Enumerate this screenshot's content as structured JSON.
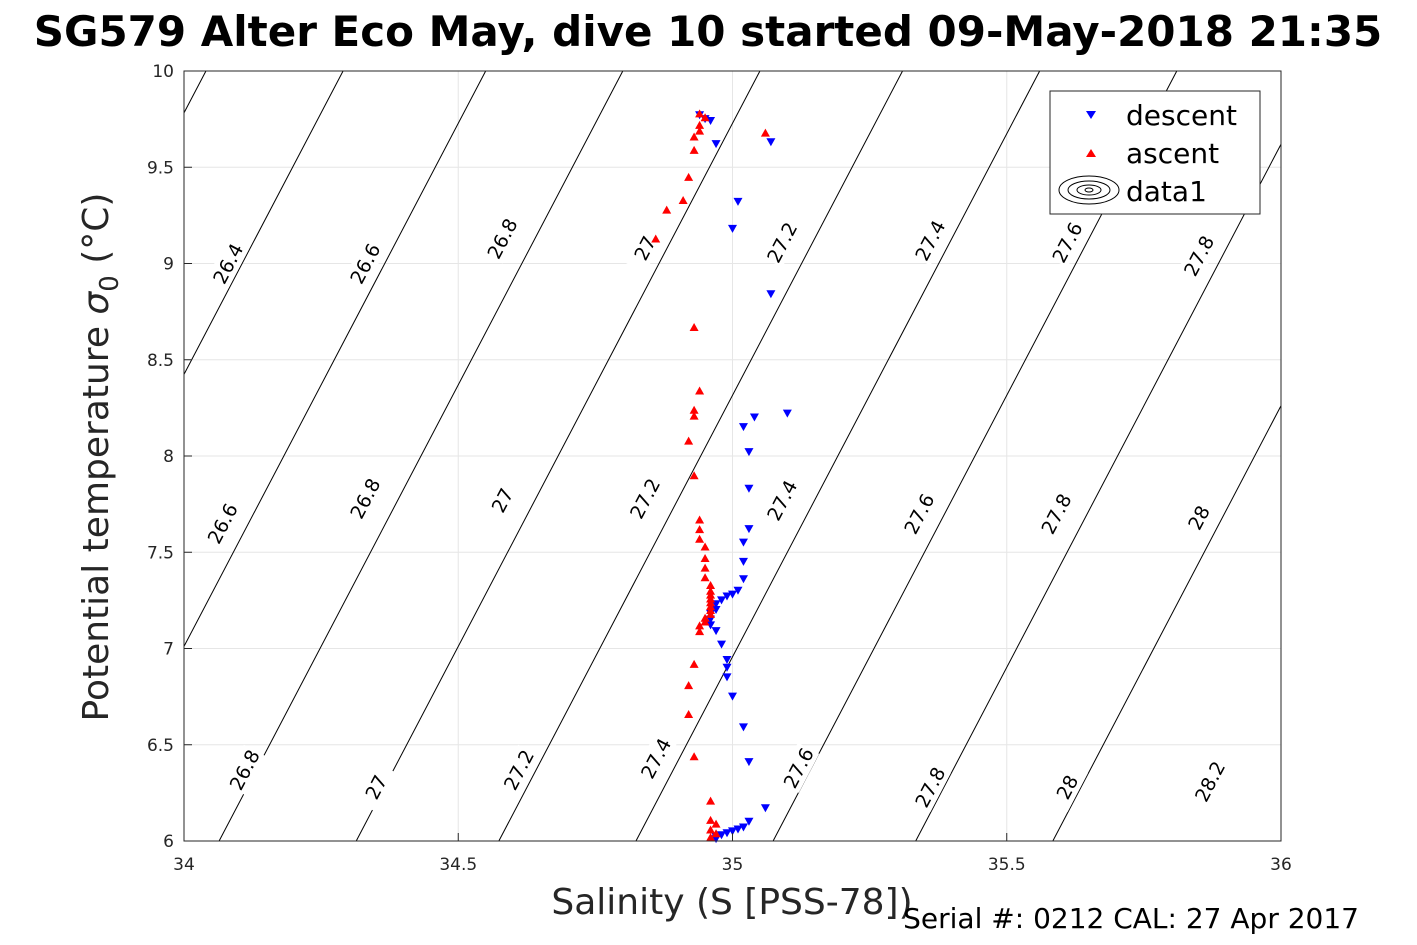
{
  "title": "SG579 Alter Eco May, dive 10 started 09-May-2018 21:35",
  "footer": "Serial #: 0212  CAL: 27 Apr 2017",
  "chart_data": {
    "type": "scatter",
    "xlabel": "Salinity (S [PSS-78])",
    "ylabel_main": "Potential temperature ",
    "ylabel_sigma": "σ",
    "ylabel_sub": "0",
    "ylabel_unit": " (°C)",
    "xlim": [
      34,
      36
    ],
    "ylim": [
      6,
      10
    ],
    "x_ticks": [
      "34",
      "34.5",
      "35",
      "35.5",
      "36"
    ],
    "y_ticks": [
      "6",
      "6.5",
      "7",
      "7.5",
      "8",
      "8.5",
      "9",
      "9.5",
      "10"
    ],
    "grid": true,
    "legend": {
      "position": "top-right",
      "entries": [
        {
          "label": "descent",
          "color": "#0000ff",
          "marker": "down-triangle"
        },
        {
          "label": "ascent",
          "color": "#ff0000",
          "marker": "up-triangle"
        },
        {
          "label": "data1",
          "marker": "contour"
        }
      ]
    },
    "isopycnals": [
      {
        "level": "26.4",
        "s_at_t10": 34.04,
        "slope": 0.184
      },
      {
        "level": "26.6",
        "s_at_t10": 34.29,
        "slope": 0.184
      },
      {
        "level": "26.8",
        "s_at_t10": 34.55,
        "slope": 0.184
      },
      {
        "level": "27",
        "s_at_t10": 34.8,
        "slope": 0.184
      },
      {
        "level": "27.2",
        "s_at_t10": 35.05,
        "slope": 0.184
      },
      {
        "level": "27.4",
        "s_at_t10": 35.31,
        "slope": 0.184
      },
      {
        "level": "27.6",
        "s_at_t10": 35.56,
        "slope": 0.184
      },
      {
        "level": "27.8",
        "s_at_t10": 35.81,
        "slope": 0.184
      },
      {
        "level": "28",
        "s_at_t10": 36.07,
        "slope": 0.184
      },
      {
        "level": "28.2",
        "s_at_t10": 36.32,
        "slope": 0.184
      }
    ],
    "contour_labels": [
      {
        "text": "26.4",
        "s": 34.08,
        "t": 9.0
      },
      {
        "text": "26.6",
        "s": 34.33,
        "t": 9.0
      },
      {
        "text": "26.8",
        "s": 34.58,
        "t": 9.13
      },
      {
        "text": "27",
        "s": 34.84,
        "t": 9.08
      },
      {
        "text": "27.2",
        "s": 35.09,
        "t": 9.11
      },
      {
        "text": "27.4",
        "s": 35.36,
        "t": 9.12
      },
      {
        "text": "27.6",
        "s": 35.61,
        "t": 9.11
      },
      {
        "text": "27.8",
        "s": 35.85,
        "t": 9.04
      },
      {
        "text": "26.6",
        "s": 34.07,
        "t": 7.65
      },
      {
        "text": "26.8",
        "s": 34.33,
        "t": 7.78
      },
      {
        "text": "27",
        "s": 34.58,
        "t": 7.77
      },
      {
        "text": "27.2",
        "s": 34.84,
        "t": 7.78
      },
      {
        "text": "27.4",
        "s": 35.09,
        "t": 7.77
      },
      {
        "text": "27.6",
        "s": 35.34,
        "t": 7.7
      },
      {
        "text": "27.8",
        "s": 35.59,
        "t": 7.7
      },
      {
        "text": "28",
        "s": 35.85,
        "t": 7.68
      },
      {
        "text": "26.8",
        "s": 34.11,
        "t": 6.37
      },
      {
        "text": "27",
        "s": 34.35,
        "t": 6.28
      },
      {
        "text": "27.2",
        "s": 34.61,
        "t": 6.37
      },
      {
        "text": "27.4",
        "s": 34.86,
        "t": 6.43
      },
      {
        "text": "27.6",
        "s": 35.12,
        "t": 6.38
      },
      {
        "text": "27.8",
        "s": 35.36,
        "t": 6.28
      },
      {
        "text": "28",
        "s": 35.61,
        "t": 6.28
      },
      {
        "text": "28.2",
        "s": 35.87,
        "t": 6.31
      }
    ],
    "series": [
      {
        "name": "descent",
        "color": "#0000ff",
        "points": [
          [
            34.94,
            9.77
          ],
          [
            34.95,
            9.75
          ],
          [
            34.96,
            9.74
          ],
          [
            34.97,
            9.62
          ],
          [
            35.07,
            9.63
          ],
          [
            35.01,
            9.32
          ],
          [
            35.0,
            9.18
          ],
          [
            35.07,
            8.84
          ],
          [
            35.1,
            8.22
          ],
          [
            35.04,
            8.2
          ],
          [
            35.02,
            8.15
          ],
          [
            35.03,
            8.02
          ],
          [
            35.03,
            7.83
          ],
          [
            35.03,
            7.62
          ],
          [
            35.02,
            7.55
          ],
          [
            35.02,
            7.45
          ],
          [
            35.02,
            7.36
          ],
          [
            35.01,
            7.3
          ],
          [
            35.0,
            7.28
          ],
          [
            34.99,
            7.27
          ],
          [
            34.98,
            7.25
          ],
          [
            34.97,
            7.23
          ],
          [
            34.97,
            7.2
          ],
          [
            34.96,
            7.18
          ],
          [
            34.96,
            7.15
          ],
          [
            34.96,
            7.12
          ],
          [
            34.97,
            7.09
          ],
          [
            34.98,
            7.02
          ],
          [
            34.99,
            6.94
          ],
          [
            34.99,
            6.9
          ],
          [
            34.99,
            6.85
          ],
          [
            35.0,
            6.75
          ],
          [
            35.02,
            6.59
          ],
          [
            35.03,
            6.41
          ],
          [
            35.06,
            6.17
          ],
          [
            35.03,
            6.1
          ],
          [
            35.02,
            6.07
          ],
          [
            35.01,
            6.06
          ],
          [
            35.0,
            6.05
          ],
          [
            34.99,
            6.04
          ],
          [
            34.98,
            6.03
          ],
          [
            34.97,
            6.02
          ],
          [
            34.97,
            6.01
          ]
        ]
      },
      {
        "name": "ascent",
        "color": "#ff0000",
        "points": [
          [
            34.94,
            9.78
          ],
          [
            34.95,
            9.76
          ],
          [
            34.94,
            9.72
          ],
          [
            34.94,
            9.69
          ],
          [
            34.93,
            9.66
          ],
          [
            34.93,
            9.59
          ],
          [
            34.92,
            9.45
          ],
          [
            34.91,
            9.33
          ],
          [
            34.88,
            9.28
          ],
          [
            34.86,
            9.13
          ],
          [
            35.06,
            9.68
          ],
          [
            34.93,
            8.67
          ],
          [
            34.94,
            8.34
          ],
          [
            34.93,
            8.24
          ],
          [
            34.93,
            8.21
          ],
          [
            34.92,
            8.08
          ],
          [
            34.93,
            7.9
          ],
          [
            34.94,
            7.67
          ],
          [
            34.94,
            7.62
          ],
          [
            34.94,
            7.57
          ],
          [
            34.95,
            7.53
          ],
          [
            34.95,
            7.47
          ],
          [
            34.95,
            7.42
          ],
          [
            34.95,
            7.37
          ],
          [
            34.96,
            7.33
          ],
          [
            34.96,
            7.3
          ],
          [
            34.96,
            7.28
          ],
          [
            34.96,
            7.26
          ],
          [
            34.96,
            7.24
          ],
          [
            34.96,
            7.22
          ],
          [
            34.96,
            7.2
          ],
          [
            34.96,
            7.18
          ],
          [
            34.95,
            7.16
          ],
          [
            34.95,
            7.14
          ],
          [
            34.94,
            7.12
          ],
          [
            34.94,
            7.09
          ],
          [
            34.93,
            6.92
          ],
          [
            34.92,
            6.81
          ],
          [
            34.92,
            6.66
          ],
          [
            34.93,
            6.44
          ],
          [
            34.96,
            6.21
          ],
          [
            34.96,
            6.11
          ],
          [
            34.97,
            6.09
          ],
          [
            34.96,
            6.06
          ],
          [
            34.97,
            6.04
          ],
          [
            34.96,
            6.02
          ]
        ]
      }
    ]
  }
}
